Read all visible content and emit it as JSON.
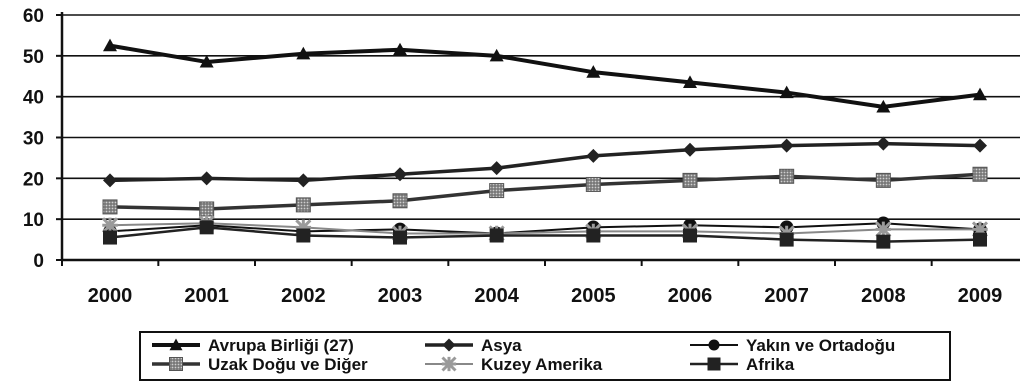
{
  "chart_data": {
    "type": "line",
    "title": "",
    "xlabel": "",
    "ylabel": "",
    "x": [
      "2000",
      "2001",
      "2002",
      "2003",
      "2004",
      "2005",
      "2006",
      "2007",
      "2008",
      "2009"
    ],
    "ylim": [
      0,
      60
    ],
    "yticks": [
      "0",
      "10",
      "20",
      "30",
      "40",
      "50",
      "60"
    ],
    "grid": true,
    "legend_position": "bottom",
    "series": [
      {
        "name": "Avrupa Birliği (27)",
        "marker": "triangle",
        "color": "#111111",
        "values": [
          52.5,
          48.5,
          50.5,
          51.5,
          50,
          46,
          43.5,
          41,
          37.5,
          40.5
        ]
      },
      {
        "name": "Asya",
        "marker": "diamond",
        "color": "#222222",
        "values": [
          19.5,
          20,
          19.5,
          21,
          22.5,
          25.5,
          27,
          28,
          28.5,
          28
        ]
      },
      {
        "name": "Yakın ve Ortadoğu",
        "marker": "circle",
        "color": "#111111",
        "values": [
          7,
          8.5,
          7,
          7.5,
          6.5,
          8,
          8.5,
          8,
          9,
          7.5
        ]
      },
      {
        "name": "Uzak Doğu ve Diğer",
        "marker": "square-dotted",
        "color": "#333333",
        "values": [
          13,
          12.5,
          13.5,
          14.5,
          17,
          18.5,
          19.5,
          20.5,
          19.5,
          21
        ]
      },
      {
        "name": "Kuzey Amerika",
        "marker": "star",
        "color": "#888888",
        "values": [
          8.5,
          9,
          8,
          6.5,
          6.5,
          7,
          7,
          6.5,
          7.5,
          7.5
        ]
      },
      {
        "name": "Afrika",
        "marker": "square",
        "color": "#222222",
        "values": [
          5.5,
          8,
          6,
          5.5,
          6,
          6,
          6,
          5,
          4.5,
          5
        ]
      }
    ]
  }
}
